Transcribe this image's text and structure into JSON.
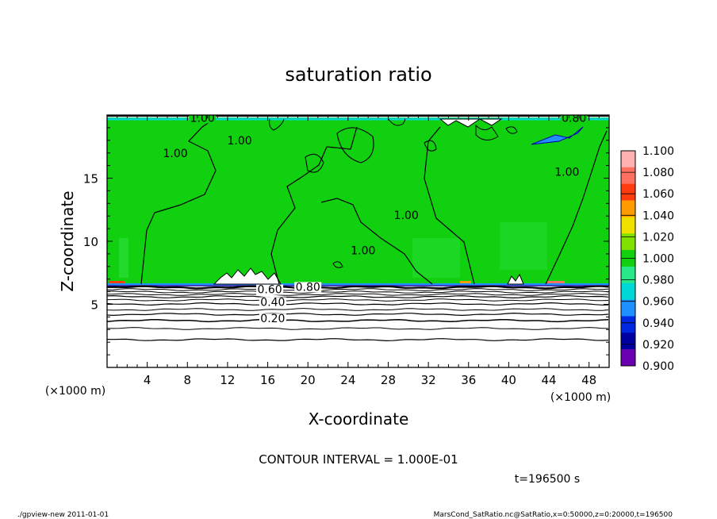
{
  "chart_data": {
    "type": "heatmap",
    "title": "saturation ratio",
    "xlabel": "X-coordinate",
    "ylabel": "Z-coordinate",
    "x_unit": "(×1000 m)",
    "x_unit_right": "(×1000 m)",
    "xlim": [
      0,
      50
    ],
    "ylim": [
      0,
      20
    ],
    "x_ticks": [
      4,
      8,
      12,
      16,
      20,
      24,
      28,
      32,
      36,
      40,
      44,
      48
    ],
    "y_ticks": [
      5,
      10,
      15
    ],
    "colorbar": {
      "levels": [
        "1.100",
        "1.080",
        "1.060",
        "1.040",
        "1.020",
        "1.000",
        "0.980",
        "0.960",
        "0.940",
        "0.920",
        "0.900"
      ],
      "colors": [
        "#ffb0b0",
        "#ff7060",
        "#ff3b10",
        "#ff9a00",
        "#f0e000",
        "#80e000",
        "#10d010",
        "#28e88a",
        "#00d8d8",
        "#1e90ff",
        "#0028e0",
        "#0000a0",
        "#6a00b0"
      ]
    },
    "contour_labels": [
      {
        "text": "1.00",
        "x": 9.5,
        "z": 19.6
      },
      {
        "text": "1.00",
        "x": 13.2,
        "z": 17.8
      },
      {
        "text": "1.00",
        "x": 6.8,
        "z": 16.8
      },
      {
        "text": "1.00",
        "x": 29.8,
        "z": 11.9
      },
      {
        "text": "1.00",
        "x": 25.5,
        "z": 9.1
      },
      {
        "text": "1.00",
        "x": 45.8,
        "z": 15.3
      },
      {
        "text": "0.80",
        "x": 46.5,
        "z": 19.6
      },
      {
        "text": "0.60",
        "x": 16.2,
        "z": 6.0
      },
      {
        "text": "0.80",
        "x": 20.0,
        "z": 6.2
      },
      {
        "text": "0.40",
        "x": 16.5,
        "z": 5.0
      },
      {
        "text": "0.20",
        "x": 16.5,
        "z": 3.7
      }
    ],
    "footer": {
      "contour_interval": "CONTOUR INTERVAL = 1.000E-01",
      "time": "t=196500 s",
      "program": "./gpview-new  2011-01-01",
      "source": "MarsCond_SatRatio.nc@SatRatio,x=0:50000,z=0:20000,t=196500"
    }
  },
  "colors": {
    "field": "#10d010",
    "field_light": "#2ee040",
    "lower_layer": "#ffffff"
  }
}
